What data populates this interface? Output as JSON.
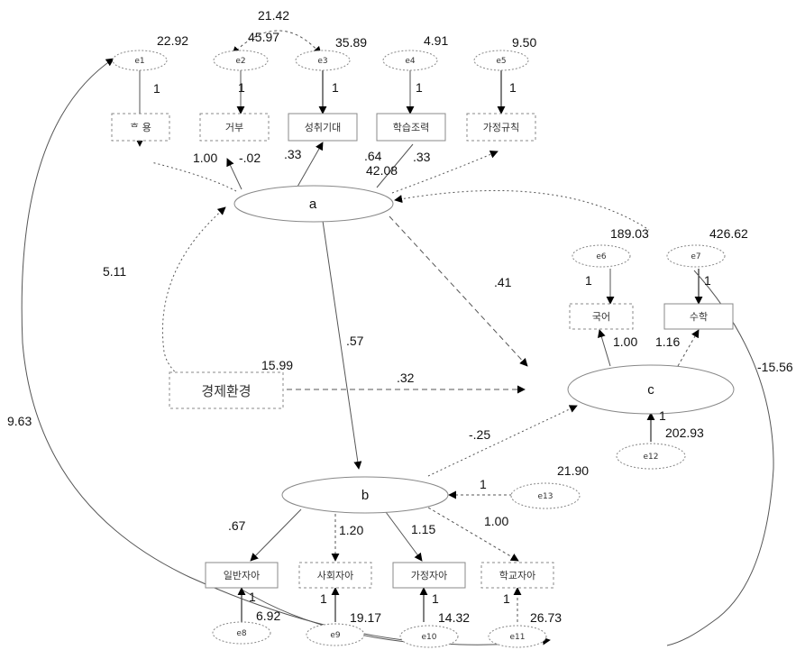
{
  "latent": {
    "a": "a",
    "b": "b",
    "c": "c"
  },
  "observed": {
    "accept": "ᄒ 용",
    "reject": "거부",
    "achieve": "성취기대",
    "study": "학습조력",
    "rules": "가정규칙",
    "econ": "경제환경",
    "korean": "국어",
    "math": "수학",
    "general_self": "일반자아",
    "social_self": "사회자아",
    "family_self": "가정자아",
    "school_self": "학교자아"
  },
  "errors": {
    "e1": "e1",
    "e2": "e2",
    "e3": "e3",
    "e4": "e4",
    "e5": "e5",
    "e6": "e6",
    "e7": "e7",
    "e8": "e8",
    "e9": "e9",
    "e10": "e10",
    "e11": "e11",
    "e12": "e12",
    "e13": "e13"
  },
  "variances": {
    "e1": "22.92",
    "e2": "45.97",
    "e3": "35.89",
    "e4": "4.91",
    "e5": "9.50",
    "e6": "189.03",
    "e7": "426.62",
    "e8": "6.92",
    "e9": "19.17",
    "e10": "14.32",
    "e11": "26.73",
    "e12": "202.93",
    "e13": "21.90",
    "a": "42.08",
    "econ": "15.99"
  },
  "coefficients": {
    "e2_e3_cov": "21.42",
    "one": "1",
    "a_accept": "1.00",
    "a_reject": "-.02",
    "a_achieve": ".33",
    "a_study": ".64",
    "a_rules": ".33",
    "a_econ": "5.11",
    "a_b": ".57",
    "a_c": ".41",
    "econ_c": ".32",
    "b_c": "-.25",
    "c_korean": "1.00",
    "c_math": "1.16",
    "b_general": ".67",
    "b_social": "1.20",
    "b_family": "1.15",
    "b_school": "1.00",
    "e1_e11": "9.63",
    "e7_e10": "-15.56"
  }
}
